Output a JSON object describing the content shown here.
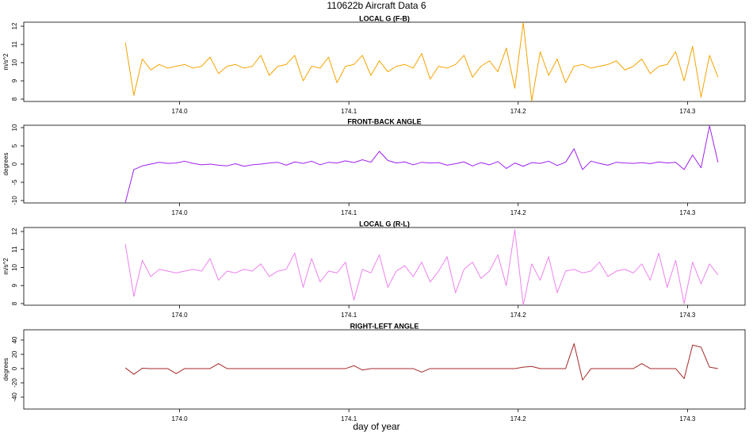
{
  "title": "110622b   Aircraft Data 6",
  "chart_data": [
    {
      "type": "line",
      "title": "LOCAL G (F-B)",
      "ylabel": "m/s^2",
      "xlim": [
        173.908,
        174.334
      ],
      "ylim": [
        7.87,
        12.22
      ],
      "xticks": [
        {
          "value": 174.0,
          "label": "174.0"
        },
        {
          "value": 174.1,
          "label": "174.1"
        },
        {
          "value": 174.2,
          "label": "174.2"
        },
        {
          "value": 174.3,
          "label": "174.3"
        }
      ],
      "yticks": [
        8,
        9,
        10,
        11,
        12
      ],
      "x": [
        173.968,
        173.973,
        173.978,
        173.983,
        173.988,
        173.993,
        173.998,
        174.003,
        174.008,
        174.013,
        174.018,
        174.023,
        174.028,
        174.033,
        174.038,
        174.043,
        174.048,
        174.053,
        174.058,
        174.063,
        174.068,
        174.073,
        174.078,
        174.083,
        174.088,
        174.093,
        174.098,
        174.103,
        174.108,
        174.113,
        174.118,
        174.123,
        174.128,
        174.133,
        174.138,
        174.143,
        174.148,
        174.153,
        174.158,
        174.163,
        174.168,
        174.173,
        174.178,
        174.183,
        174.188,
        174.193,
        174.198,
        174.203,
        174.208,
        174.213,
        174.218,
        174.223,
        174.228,
        174.233,
        174.238,
        174.243,
        174.248,
        174.253,
        174.258,
        174.263,
        174.268,
        174.273,
        174.278,
        174.283,
        174.288,
        174.293,
        174.298,
        174.303,
        174.308,
        174.313,
        174.318
      ],
      "series": [
        {
          "color": "#f5a300",
          "values": [
            11.1,
            8.2,
            10.2,
            9.6,
            9.9,
            9.7,
            9.8,
            9.9,
            9.7,
            9.8,
            10.3,
            9.4,
            9.8,
            9.9,
            9.7,
            9.8,
            10.4,
            9.3,
            9.8,
            9.9,
            10.4,
            9.0,
            9.8,
            9.7,
            10.3,
            8.9,
            9.8,
            9.9,
            10.4,
            9.3,
            10.1,
            9.5,
            9.8,
            9.9,
            9.7,
            10.5,
            9.1,
            9.8,
            9.7,
            9.9,
            10.4,
            9.2,
            9.8,
            10.1,
            9.5,
            10.8,
            8.6,
            12.2,
            7.9,
            10.6,
            9.3,
            10.2,
            8.9,
            9.8,
            9.9,
            9.7,
            9.8,
            9.9,
            10.1,
            9.6,
            9.8,
            10.2,
            9.4,
            9.8,
            9.9,
            10.6,
            9.0,
            10.9,
            8.1,
            10.4,
            9.2
          ]
        }
      ]
    },
    {
      "type": "line",
      "title": "FRONT-BACK ANGLE",
      "ylabel": "degrees",
      "xlim": [
        173.908,
        174.334
      ],
      "ylim": [
        -10.65,
        10.65
      ],
      "xticks": [
        {
          "value": 174.0,
          "label": "174.0"
        },
        {
          "value": 174.1,
          "label": "174.1"
        },
        {
          "value": 174.2,
          "label": "174.2"
        },
        {
          "value": 174.3,
          "label": "174.3"
        }
      ],
      "yticks": [
        -10,
        -5,
        0,
        5,
        10
      ],
      "x": [
        173.968,
        173.973,
        173.978,
        173.983,
        173.988,
        173.993,
        173.998,
        174.003,
        174.008,
        174.013,
        174.018,
        174.023,
        174.028,
        174.033,
        174.038,
        174.043,
        174.048,
        174.053,
        174.058,
        174.063,
        174.068,
        174.073,
        174.078,
        174.083,
        174.088,
        174.093,
        174.098,
        174.103,
        174.108,
        174.113,
        174.118,
        174.123,
        174.128,
        174.133,
        174.138,
        174.143,
        174.148,
        174.153,
        174.158,
        174.163,
        174.168,
        174.173,
        174.178,
        174.183,
        174.188,
        174.193,
        174.198,
        174.203,
        174.208,
        174.213,
        174.218,
        174.223,
        174.228,
        174.233,
        174.238,
        174.243,
        174.248,
        174.253,
        174.258,
        174.263,
        174.268,
        174.273,
        174.278,
        174.283,
        174.288,
        174.293,
        174.298,
        174.303,
        174.308,
        174.313,
        174.318
      ],
      "series": [
        {
          "color": "#a020f0",
          "values": [
            -10.5,
            -1.5,
            -0.5,
            0,
            0.5,
            0.2,
            0.3,
            0.8,
            0.2,
            -0.2,
            0,
            -0.3,
            -0.5,
            0.1,
            -0.6,
            -0.2,
            0,
            0.3,
            0.5,
            -0.3,
            0.6,
            0.2,
            0.8,
            -0.2,
            0.5,
            0.3,
            0.9,
            0.4,
            1.2,
            0.5,
            3.5,
            1.0,
            0.3,
            0.6,
            -0.2,
            0.5,
            0.3,
            0.4,
            -0.3,
            0.1,
            0.6,
            -0.5,
            0.4,
            -0.2,
            0.7,
            -1.2,
            0.3,
            -0.6,
            0.4,
            0.2,
            0.8,
            -0.4,
            0.5,
            4.2,
            -1.5,
            0.8,
            0.2,
            -0.3,
            0.5,
            0.3,
            0.2,
            0.4,
            0.1,
            0.6,
            0.3,
            0.5,
            -1.5,
            2.5,
            -1.0,
            10.5,
            0.5
          ]
        }
      ]
    },
    {
      "type": "line",
      "title": "LOCAL G (R-L)",
      "ylabel": "m/s^2",
      "xlim": [
        173.908,
        174.334
      ],
      "ylim": [
        7.91,
        12.22
      ],
      "xticks": [
        {
          "value": 174.0,
          "label": "174.0"
        },
        {
          "value": 174.1,
          "label": "174.1"
        },
        {
          "value": 174.2,
          "label": "174.2"
        },
        {
          "value": 174.3,
          "label": "174.3"
        }
      ],
      "yticks": [
        8,
        9,
        10,
        11,
        12
      ],
      "x": [
        173.968,
        173.973,
        173.978,
        173.983,
        173.988,
        173.993,
        173.998,
        174.003,
        174.008,
        174.013,
        174.018,
        174.023,
        174.028,
        174.033,
        174.038,
        174.043,
        174.048,
        174.053,
        174.058,
        174.063,
        174.068,
        174.073,
        174.078,
        174.083,
        174.088,
        174.093,
        174.098,
        174.103,
        174.108,
        174.113,
        174.118,
        174.123,
        174.128,
        174.133,
        174.138,
        174.143,
        174.148,
        174.153,
        174.158,
        174.163,
        174.168,
        174.173,
        174.178,
        174.183,
        174.188,
        174.193,
        174.198,
        174.203,
        174.208,
        174.213,
        174.218,
        174.223,
        174.228,
        174.233,
        174.238,
        174.243,
        174.248,
        174.253,
        174.258,
        174.263,
        174.268,
        174.273,
        174.278,
        174.283,
        174.288,
        174.293,
        174.298,
        174.303,
        174.308,
        174.313,
        174.318
      ],
      "series": [
        {
          "color": "#ee82ee",
          "values": [
            11.3,
            8.4,
            10.4,
            9.5,
            9.9,
            9.8,
            9.7,
            9.8,
            9.9,
            9.8,
            10.5,
            9.3,
            9.8,
            9.7,
            9.9,
            9.8,
            10.2,
            9.5,
            9.8,
            9.9,
            10.8,
            8.9,
            10.5,
            9.2,
            9.8,
            9.7,
            10.3,
            8.2,
            9.9,
            9.7,
            10.7,
            8.9,
            9.8,
            10.1,
            9.5,
            10.3,
            9.2,
            9.8,
            10.6,
            8.6,
            9.9,
            10.3,
            9.4,
            9.8,
            10.7,
            9.0,
            12.1,
            7.9,
            10.2,
            9.3,
            10.6,
            8.6,
            9.8,
            9.9,
            9.7,
            9.8,
            10.3,
            9.5,
            9.8,
            9.9,
            9.7,
            10.2,
            9.3,
            10.8,
            8.9,
            10.4,
            8.0,
            10.3,
            9.1,
            10.2,
            9.6
          ]
        }
      ]
    },
    {
      "type": "line",
      "title": "RIGHT-LEFT ANGLE",
      "ylabel": "degrees",
      "xlabel": "day of year",
      "xlim": [
        173.908,
        174.334
      ],
      "ylim": [
        -56.7,
        54.4
      ],
      "xticks": [
        {
          "value": 174.0,
          "label": "174.0"
        },
        {
          "value": 174.1,
          "label": "174.1"
        },
        {
          "value": 174.2,
          "label": "174.2"
        },
        {
          "value": 174.3,
          "label": "174.3"
        }
      ],
      "yticks": [
        -40,
        -20,
        0,
        20,
        40
      ],
      "x": [
        173.968,
        173.973,
        173.978,
        173.983,
        173.988,
        173.993,
        173.998,
        174.003,
        174.008,
        174.013,
        174.018,
        174.023,
        174.028,
        174.033,
        174.038,
        174.043,
        174.048,
        174.053,
        174.058,
        174.063,
        174.068,
        174.073,
        174.078,
        174.083,
        174.088,
        174.093,
        174.098,
        174.103,
        174.108,
        174.113,
        174.118,
        174.123,
        174.128,
        174.133,
        174.138,
        174.143,
        174.148,
        174.153,
        174.158,
        174.163,
        174.168,
        174.173,
        174.178,
        174.183,
        174.188,
        174.193,
        174.198,
        174.203,
        174.208,
        174.213,
        174.218,
        174.223,
        174.228,
        174.233,
        174.238,
        174.243,
        174.248,
        174.253,
        174.258,
        174.263,
        174.268,
        174.273,
        174.278,
        174.283,
        174.288,
        174.293,
        174.298,
        174.303,
        174.308,
        174.313,
        174.318
      ],
      "series": [
        {
          "color": "#a52a2a",
          "values": [
            1,
            -8,
            0.5,
            0,
            0,
            0,
            -7,
            0,
            0,
            0,
            0,
            7,
            0,
            0,
            0,
            0,
            0,
            0,
            0,
            0,
            0,
            0,
            0,
            0,
            0,
            0,
            0,
            4,
            -2,
            0,
            0,
            0,
            0,
            0,
            0,
            -5,
            0,
            0,
            0,
            0,
            0,
            0,
            0,
            0,
            0,
            0,
            0,
            2,
            3,
            0,
            0,
            0,
            0,
            35,
            -16,
            0,
            0,
            0,
            0,
            0,
            0,
            7,
            0,
            0,
            0,
            0,
            -14,
            33,
            30,
            2,
            0
          ]
        }
      ]
    }
  ]
}
